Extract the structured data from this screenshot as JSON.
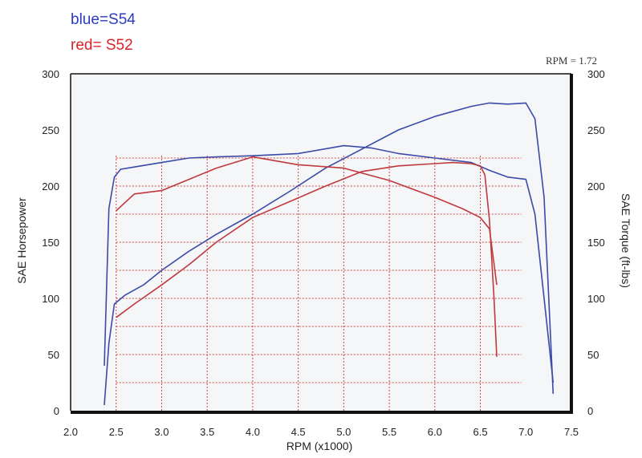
{
  "legend": {
    "blue": "blue=S54",
    "red": "red= S52"
  },
  "corner_note": "RPM = 1.72",
  "colors": {
    "s54": "#3b4aa8",
    "s52": "#c0393e",
    "grid": "#c94a4a",
    "frame": "#111111",
    "paper": "#f4f6f8"
  },
  "chart_data": {
    "type": "line",
    "xlabel": "RPM (x1000)",
    "ylabel": "SAE Horsepower",
    "y2label": "SAE Torque (ft-lbs)",
    "xlim": [
      2.0,
      7.5
    ],
    "ylim": [
      0,
      300
    ],
    "y2lim": [
      0,
      300
    ],
    "x_ticks": [
      "2.0",
      "2.5",
      "3.0",
      "3.5",
      "4.0",
      "4.5",
      "5.0",
      "5.5",
      "6.0",
      "6.5",
      "7.0",
      "7.5"
    ],
    "y_ticks": [
      "0",
      "50",
      "100",
      "150",
      "200",
      "250",
      "300"
    ],
    "y2_ticks": [
      "0",
      "50",
      "100",
      "150",
      "200",
      "250",
      "300"
    ],
    "grid": true,
    "series": [
      {
        "name": "S54",
        "quantity": "horsepower",
        "color": "blue",
        "x": [
          2.37,
          2.42,
          2.48,
          2.6,
          2.8,
          3.0,
          3.3,
          3.6,
          4.0,
          4.4,
          4.8,
          5.2,
          5.6,
          6.0,
          6.4,
          6.6,
          6.8,
          7.0,
          7.1,
          7.2,
          7.3
        ],
        "y": [
          5,
          60,
          95,
          103,
          112,
          125,
          142,
          157,
          175,
          195,
          216,
          233,
          250,
          262,
          271,
          274,
          273,
          274,
          260,
          190,
          15
        ]
      },
      {
        "name": "S54",
        "quantity": "torque",
        "color": "blue",
        "x": [
          2.37,
          2.42,
          2.48,
          2.55,
          2.7,
          3.0,
          3.3,
          3.6,
          4.0,
          4.5,
          5.0,
          5.3,
          5.6,
          6.0,
          6.4,
          6.6,
          6.8,
          7.0,
          7.1,
          7.2,
          7.3
        ],
        "y": [
          40,
          180,
          208,
          215,
          217,
          221,
          225,
          226,
          227,
          229,
          236,
          234,
          229,
          225,
          221,
          214,
          208,
          206,
          175,
          100,
          25
        ]
      },
      {
        "name": "S52",
        "quantity": "horsepower",
        "color": "red",
        "x": [
          2.5,
          2.7,
          3.0,
          3.3,
          3.6,
          4.0,
          4.4,
          4.8,
          5.2,
          5.6,
          6.0,
          6.2,
          6.4,
          6.5,
          6.55,
          6.6,
          6.65,
          6.68
        ],
        "y": [
          83,
          95,
          112,
          130,
          150,
          172,
          186,
          200,
          213,
          218,
          220,
          221,
          220,
          218,
          210,
          170,
          100,
          48
        ]
      },
      {
        "name": "S52",
        "quantity": "torque",
        "color": "red",
        "x": [
          2.5,
          2.7,
          3.0,
          3.3,
          3.6,
          4.0,
          4.5,
          5.0,
          5.5,
          6.0,
          6.3,
          6.5,
          6.6,
          6.68
        ],
        "y": [
          178,
          193,
          196,
          206,
          216,
          226,
          219,
          216,
          205,
          190,
          180,
          172,
          162,
          112
        ]
      }
    ]
  }
}
